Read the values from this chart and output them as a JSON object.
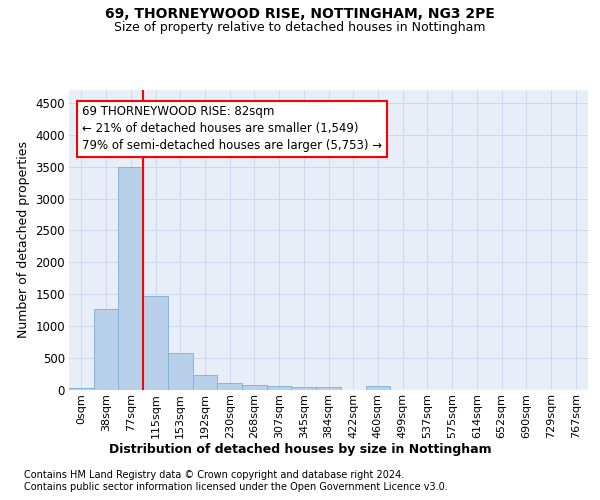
{
  "title1": "69, THORNEYWOOD RISE, NOTTINGHAM, NG3 2PE",
  "title2": "Size of property relative to detached houses in Nottingham",
  "xlabel": "Distribution of detached houses by size in Nottingham",
  "ylabel": "Number of detached properties",
  "footnote1": "Contains HM Land Registry data © Crown copyright and database right 2024.",
  "footnote2": "Contains public sector information licensed under the Open Government Licence v3.0.",
  "bin_labels": [
    "0sqm",
    "38sqm",
    "77sqm",
    "115sqm",
    "153sqm",
    "192sqm",
    "230sqm",
    "268sqm",
    "307sqm",
    "345sqm",
    "384sqm",
    "422sqm",
    "460sqm",
    "499sqm",
    "537sqm",
    "575sqm",
    "614sqm",
    "652sqm",
    "690sqm",
    "729sqm",
    "767sqm"
  ],
  "bar_values": [
    30,
    1270,
    3500,
    1480,
    575,
    240,
    115,
    80,
    55,
    40,
    50,
    0,
    55,
    0,
    0,
    0,
    0,
    0,
    0,
    0,
    0
  ],
  "bar_color": "#b8d0ea",
  "bar_edge_color": "#7aafd4",
  "grid_color": "#c8d4e8",
  "bg_color": "#e8eef8",
  "annotation_line1": "69 THORNEYWOOD RISE: 82sqm",
  "annotation_line2": "← 21% of detached houses are smaller (1,549)",
  "annotation_line3": "79% of semi-detached houses are larger (5,753) →",
  "red_line_bar_index": 2,
  "ylim_max": 4700,
  "yticks": [
    0,
    500,
    1000,
    1500,
    2000,
    2500,
    3000,
    3500,
    4000,
    4500
  ]
}
